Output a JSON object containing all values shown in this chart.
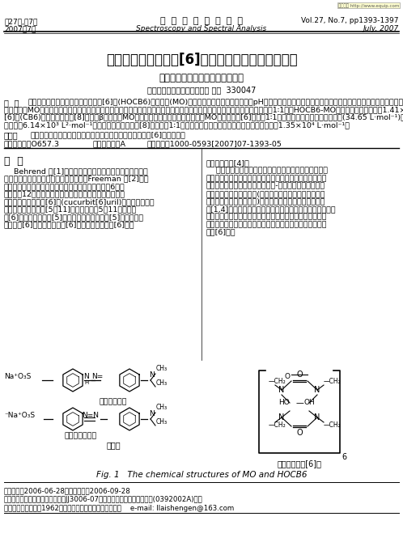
{
  "watermark": "免费文献 http://www.equip.com",
  "header_left_line1": "第27卷,第7期",
  "header_left_line2": "2007年7月",
  "header_center_line1": "光  谱  学  与  光  谱  分  析",
  "header_center_line2": "Spectroscopy and Spectral Analysis",
  "header_right_line1": "Vol.27, No.7, pp1393-1397",
  "header_right_line2": "July, 2007",
  "title": "光谱法研究羟基葫芦[6]脲与甲基橙的分子识别作用",
  "authors": "李来生，葛小辉，黄志兵，李艳平",
  "affiliation": "南昌大学分析测试中心，江西 南昌  330047",
  "abstract_label": "摘  要",
  "abs_line1": "采用紫外和荧光光谱法研究羟基葫芦[6]脲(HOCB6)与甲基橙(MO)之间的包结作用，考察了溶液的pH值、常见有机溶剂和表面活性剂等对该包结物的形成及荧光强度的影响。实验结果表明，随着主体分",
  "abs_line2": "子的加入，MO荧光增强且蓝移，说明客体被纳入主体分子的疏水性穴腔，形成内包结物。主客体分子之间主要通过疏水作用形成1∶1型的HOCB6-MO包结物，其包结常数为1.41×10² L·mol⁻¹，同时采用葫芦",
  "abs_line3": "[6]脲(CB6)、对二甲氨基苯[8]芳烃和β环糊精与MO的作用进行比较，荧光实验表明，MO也能与葫芦[6]脲形成1∶1型的内包结物，但包结常数较小(34.65 L·mol⁻¹)；与β环糊精形成1∶2型的内包结物，其包",
  "abs_line4": "结常数为6.14×10³ L²·mol⁻¹；与对二甲氨基甲基杯[8]芳烃形成1∶1型的外包结物，导致荧光强烈猝灭，包结常数为1.35×10⁴ L·mol⁻¹。",
  "keywords_label": "关键词",
  "keywords_text": "紫外光谱法；荧光光谱法；分子识别；包结作用；羟基葫芦[6]脲；甲基橙",
  "clc": "中图分类号：O657.3",
  "doc_code": "文献标识码：A",
  "article_no": "文章编号：1000-0593[2007]07-1393-05",
  "section_title": "引  言",
  "left_col": [
    "    Behrend 等[1]报道甘脲和甲醛在磷盐酸中的反应，产物",
    "经热的硫磺酸处理，可得一环状化合物。Freeman 等[2]重新",
    "研究了这一反应，并鉴定了产物的结构，证明它是由6个甘",
    "脲单元经12个亚甲基连接起来的一种大环化合物。其外形",
    "类似南瓜故名为葫芦[6]脲(cucurbit[6]uril)。至今，已合成",
    "的葫芦脲系列有葫芦[5～11]脲，分别含有5～11个甘脲单",
    "元[6]以及十四葡萄糖[5]脲，五环己烷并葡萄糖[5]脲，六环己",
    "烷并葫芦[6]脲，二苯基葫芦[6]脲和十二羟基葫芦[6]脲等"
  ],
  "right_col": [
    "葫芦脲衍生物[4]。",
    "    葫芦脲具有刚性的穴腔结构，腔内具有疏水性，能通过",
    "疏水作用包结某些有机分子；两端口有多个羰基环绕，形成",
    "阴离子的键合位点；可以通过离子-偶极和氢键等作用键合",
    "离子和分子。在分子识别(客体主要包括有机酸离子、金属",
    "离子、中性分子和图离子)、分子组装、行水处理和药物释",
    "控[1,4]等许多领域有广泛的应用潜力。与环糊精和杯芳烃相",
    "比，由于葫芦脲的衍生和提纯难度较大，对这类新型主体分",
    "子的分子识别功能研究较少，目前研究较多的仍是易合成的",
    "葫芦[6]脲。"
  ],
  "fig_na_red": "Na⁺O₃S",
  "fig_na_yellow": "⁻Na⁺O₃S",
  "fig_label_red": "红色（酸式）",
  "fig_label_yellow": "黄色（偶氮式）",
  "fig_mo_title": "甲基橙",
  "fig_hocb6_title": "十二羟基葫芦[6]脲",
  "fig_caption": "Fig. 1   The chemical structures of MO and HOCB6",
  "footnote1": "收稿日期：2006-06-28，修订日期：2006-09-28",
  "footnote2": "基金项目：江西省教育基金项目（JJ3006-07）和江西省自然科学基金项目(0392002A)资助",
  "footnote3": "作者简介：李来生，1962年生，南昌大学分析测试中心教授    e-mail: llaishengen@163.com",
  "bg": "#ffffff",
  "dpi": 100,
  "figw": 4.98,
  "figh": 6.91
}
